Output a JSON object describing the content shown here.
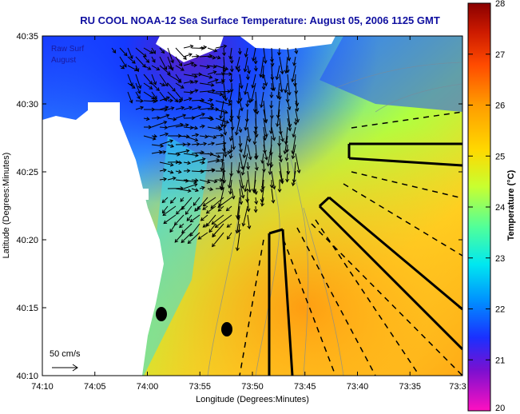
{
  "title": "RU COOL  NOAA-12  Sea Surface Temperature:  August 05, 2006 1125 GMT",
  "overlay": {
    "line1": "Raw Surf",
    "line2": "August"
  },
  "axes": {
    "xlabel": "Longitude (Degrees:Minutes)",
    "ylabel": "Latitude (Degrees:Minutes)",
    "x_ticks": [
      "74:10",
      "74:05",
      "74:00",
      "73:55",
      "73:50",
      "73:45",
      "73:40",
      "73:35",
      "73:3"
    ],
    "y_ticks": [
      "40:35",
      "40:30",
      "40:25",
      "40:20",
      "40:15",
      "40:10"
    ]
  },
  "scale_label": "50 cm/s",
  "colorbar": {
    "title": "Temperature (°C)",
    "ticks": [
      "28",
      "27",
      "26",
      "25",
      "24",
      "23",
      "22",
      "21",
      "20"
    ],
    "min": 20,
    "max": 28
  },
  "colors": {
    "title": "#1010a0",
    "overlay_text": "#1a1aa0"
  }
}
